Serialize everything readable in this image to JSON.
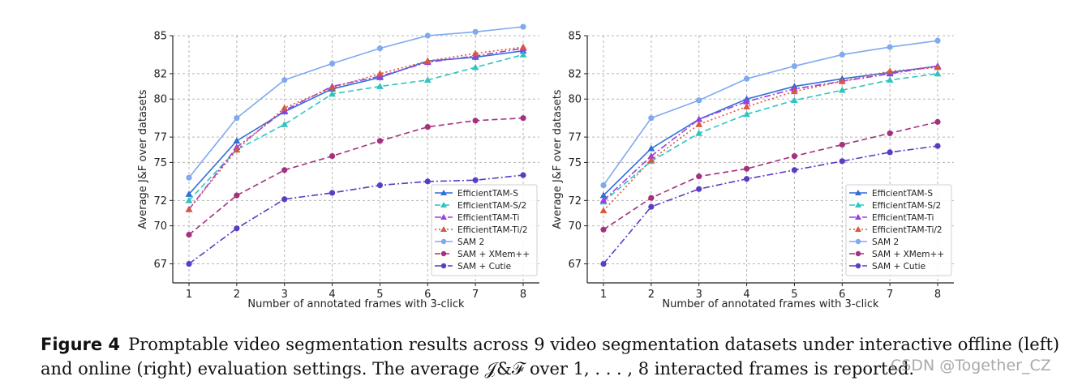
{
  "caption": {
    "label": "Figure 4",
    "text": "Promptable video segmentation results across 9 video segmentation datasets under interactive offline (left) and online (right) evaluation settings. The average 𝒥&ℱ over 1, . . . , 8 interacted frames is reported."
  },
  "watermark": "CSDN @Together_CZ",
  "chart_data": [
    {
      "type": "line",
      "name": "offline",
      "xlabel": "Number of annotated frames with 3-click",
      "ylabel": "Average J&F over datasets",
      "x": [
        1,
        2,
        3,
        4,
        5,
        6,
        7,
        8
      ],
      "ylim": [
        65.5,
        85
      ],
      "yticks": [
        67,
        70,
        72,
        75,
        77,
        80,
        82,
        85
      ],
      "ytick_labels": [
        "67",
        "70",
        "72",
        "75",
        "77",
        "80",
        "82",
        "85"
      ],
      "grid": true,
      "legend_position": "bottom-right",
      "series": [
        {
          "name": "EfficientTAM-S",
          "color": "#2f6fd6",
          "dash": "",
          "marker": "triangle",
          "values": [
            72.5,
            76.7,
            79.0,
            80.8,
            81.7,
            83.0,
            83.3,
            83.8
          ]
        },
        {
          "name": "EfficientTAM-S/2",
          "color": "#2ec4c0",
          "dash": "7,4",
          "marker": "triangle",
          "values": [
            72.0,
            76.0,
            78.0,
            80.4,
            81.0,
            81.5,
            82.5,
            83.5
          ]
        },
        {
          "name": "EfficientTAM-Ti",
          "color": "#9b3fe0",
          "dash": "8,3,2,3",
          "marker": "triangle",
          "values": [
            71.3,
            76.2,
            79.1,
            81.0,
            81.8,
            82.9,
            83.4,
            84.0
          ]
        },
        {
          "name": "EfficientTAM-Ti/2",
          "color": "#d9573c",
          "dash": "2,3",
          "marker": "triangle",
          "values": [
            71.3,
            76.0,
            79.3,
            80.9,
            82.0,
            83.0,
            83.6,
            84.1
          ]
        },
        {
          "name": "SAM 2",
          "color": "#7fa9f0",
          "dash": "",
          "marker": "circle",
          "values": [
            73.8,
            78.5,
            81.5,
            82.8,
            84.0,
            85.0,
            85.3,
            85.7
          ]
        },
        {
          "name": "SAM + XMem++",
          "color": "#a5307e",
          "dash": "7,4",
          "marker": "circle",
          "values": [
            69.3,
            72.4,
            74.4,
            75.5,
            76.7,
            77.8,
            78.3,
            78.5
          ]
        },
        {
          "name": "SAM + Cutie",
          "color": "#5b3cc4",
          "dash": "8,3,2,3",
          "marker": "circle",
          "values": [
            67.0,
            69.8,
            72.1,
            72.6,
            73.2,
            73.5,
            73.6,
            74.0
          ]
        }
      ]
    },
    {
      "type": "line",
      "name": "online",
      "xlabel": "Number of annotated frames with 3-click",
      "ylabel": "Average J&F over datasets",
      "x": [
        1,
        2,
        3,
        4,
        5,
        6,
        7,
        8
      ],
      "ylim": [
        65.5,
        85
      ],
      "yticks": [
        67,
        70,
        72,
        75,
        77,
        80,
        82,
        85
      ],
      "ytick_labels": [
        "67",
        "70",
        "72",
        "75",
        "77",
        "80",
        "82",
        "85"
      ],
      "grid": true,
      "legend_position": "bottom-right",
      "series": [
        {
          "name": "EfficientTAM-S",
          "color": "#2f6fd6",
          "dash": "",
          "marker": "triangle",
          "values": [
            72.4,
            76.1,
            78.4,
            80.0,
            81.0,
            81.6,
            82.1,
            82.6
          ]
        },
        {
          "name": "EfficientTAM-S/2",
          "color": "#2ec4c0",
          "dash": "7,4",
          "marker": "triangle",
          "values": [
            71.9,
            75.1,
            77.3,
            78.8,
            79.9,
            80.7,
            81.5,
            82.0
          ]
        },
        {
          "name": "EfficientTAM-Ti",
          "color": "#9b3fe0",
          "dash": "8,3,2,3",
          "marker": "triangle",
          "values": [
            72.0,
            75.5,
            78.4,
            79.8,
            80.8,
            81.4,
            82.0,
            82.6
          ]
        },
        {
          "name": "EfficientTAM-Ti/2",
          "color": "#d9573c",
          "dash": "2,3",
          "marker": "triangle",
          "values": [
            71.2,
            75.2,
            78.0,
            79.4,
            80.6,
            81.4,
            82.2,
            82.5
          ]
        },
        {
          "name": "SAM 2",
          "color": "#7fa9f0",
          "dash": "",
          "marker": "circle",
          "values": [
            73.2,
            78.5,
            79.9,
            81.6,
            82.6,
            83.5,
            84.1,
            84.6
          ]
        },
        {
          "name": "SAM + XMem++",
          "color": "#a5307e",
          "dash": "7,4",
          "marker": "circle",
          "values": [
            69.7,
            72.2,
            73.9,
            74.5,
            75.5,
            76.4,
            77.3,
            78.2
          ]
        },
        {
          "name": "SAM + Cutie",
          "color": "#5b3cc4",
          "dash": "8,3,2,3",
          "marker": "circle",
          "values": [
            67.0,
            71.5,
            72.9,
            73.7,
            74.4,
            75.1,
            75.8,
            76.3
          ]
        }
      ]
    }
  ]
}
